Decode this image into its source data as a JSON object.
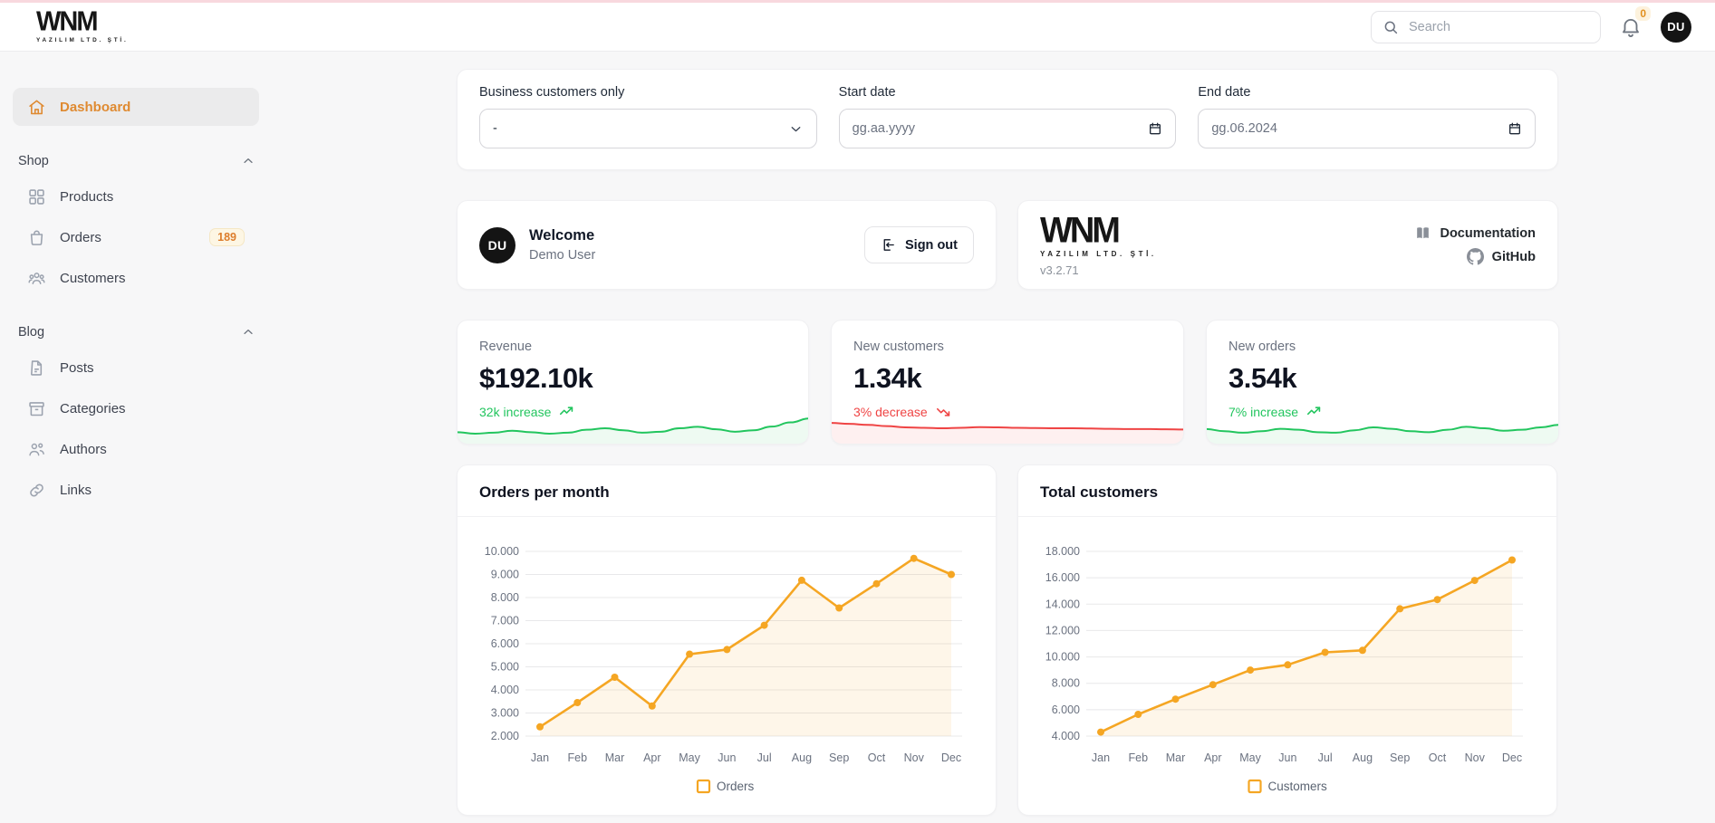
{
  "colors": {
    "accent_orange": "#df8a31",
    "chart_orange": "#F5A623",
    "green": "#22c55e",
    "red": "#ef4444",
    "top_accent_pink": "#f8d8de"
  },
  "header": {
    "logo_text": "WNM",
    "logo_subtext": "YAZILIM LTD. ŞTİ.",
    "search_placeholder": "Search",
    "notification_count": "0",
    "avatar_initials": "DU"
  },
  "sidebar": {
    "dashboard": {
      "label": "Dashboard"
    },
    "sections": [
      {
        "label": "Shop",
        "items": [
          {
            "label": "Products"
          },
          {
            "label": "Orders",
            "badge": "189"
          },
          {
            "label": "Customers"
          }
        ]
      },
      {
        "label": "Blog",
        "items": [
          {
            "label": "Posts"
          },
          {
            "label": "Categories"
          },
          {
            "label": "Authors"
          },
          {
            "label": "Links"
          }
        ]
      }
    ]
  },
  "filters": {
    "business_customers": {
      "label": "Business customers only",
      "value": "-"
    },
    "start_date": {
      "label": "Start date",
      "value": "gg.aa.yyyy"
    },
    "end_date": {
      "label": "End date",
      "value": "gg.06.2024"
    }
  },
  "welcome": {
    "avatar_initials": "DU",
    "title": "Welcome",
    "user": "Demo User",
    "sign_out_label": "Sign out"
  },
  "version": {
    "logo_text": "WNM",
    "logo_subtext": "YAZILIM LTD. ŞTİ.",
    "version": "v3.2.71",
    "links": [
      {
        "label": "Documentation"
      },
      {
        "label": "GitHub"
      }
    ]
  },
  "stats": [
    {
      "label": "Revenue",
      "value": "$192.10k",
      "delta": "32k increase",
      "trend": "up",
      "color": "#22c55e",
      "sparkline": [
        32,
        26,
        30,
        38,
        32,
        26,
        30,
        42,
        48,
        40,
        30,
        34,
        48,
        54,
        44,
        34,
        40,
        55,
        72,
        88
      ]
    },
    {
      "label": "New customers",
      "value": "1.34k",
      "delta": "3% decrease",
      "trend": "down",
      "color": "#ef4444",
      "sparkline": [
        70,
        66,
        62,
        57,
        52,
        50,
        48,
        50,
        53,
        52,
        50,
        49,
        48,
        48,
        47,
        46,
        45,
        45,
        44,
        43
      ]
    },
    {
      "label": "New orders",
      "value": "3.54k",
      "delta": "7% increase",
      "trend": "up",
      "color": "#22c55e",
      "sparkline": [
        45,
        36,
        30,
        36,
        46,
        42,
        32,
        30,
        40,
        52,
        46,
        36,
        32,
        42,
        54,
        48,
        38,
        42,
        52,
        62
      ]
    }
  ],
  "chart_data": [
    {
      "type": "line",
      "title": "Orders per month",
      "categories": [
        "Jan",
        "Feb",
        "Mar",
        "Apr",
        "May",
        "Jun",
        "Jul",
        "Aug",
        "Sep",
        "Oct",
        "Nov",
        "Dec"
      ],
      "series": [
        {
          "name": "Orders",
          "values": [
            2400,
            3450,
            4550,
            3300,
            5550,
            5750,
            6800,
            8750,
            7550,
            8600,
            9700,
            9000
          ]
        }
      ],
      "xlabel": "",
      "ylabel": "",
      "ylim": [
        2000,
        10000
      ],
      "ytick_step": 1000,
      "grid": true,
      "legend_position": "bottom",
      "line_color": "#F5A623",
      "fill_color": "rgba(245,166,35,0.10)"
    },
    {
      "type": "line",
      "title": "Total customers",
      "categories": [
        "Jan",
        "Feb",
        "Mar",
        "Apr",
        "May",
        "Jun",
        "Jul",
        "Aug",
        "Sep",
        "Oct",
        "Nov",
        "Dec"
      ],
      "series": [
        {
          "name": "Customers",
          "values": [
            4300,
            5650,
            6800,
            7900,
            9000,
            9400,
            10350,
            10500,
            13650,
            14350,
            15800,
            17350
          ]
        }
      ],
      "xlabel": "",
      "ylabel": "",
      "ylim": [
        4000,
        18000
      ],
      "ytick_step": 2000,
      "grid": true,
      "legend_position": "bottom",
      "line_color": "#F5A623",
      "fill_color": "rgba(245,166,35,0.10)"
    }
  ]
}
